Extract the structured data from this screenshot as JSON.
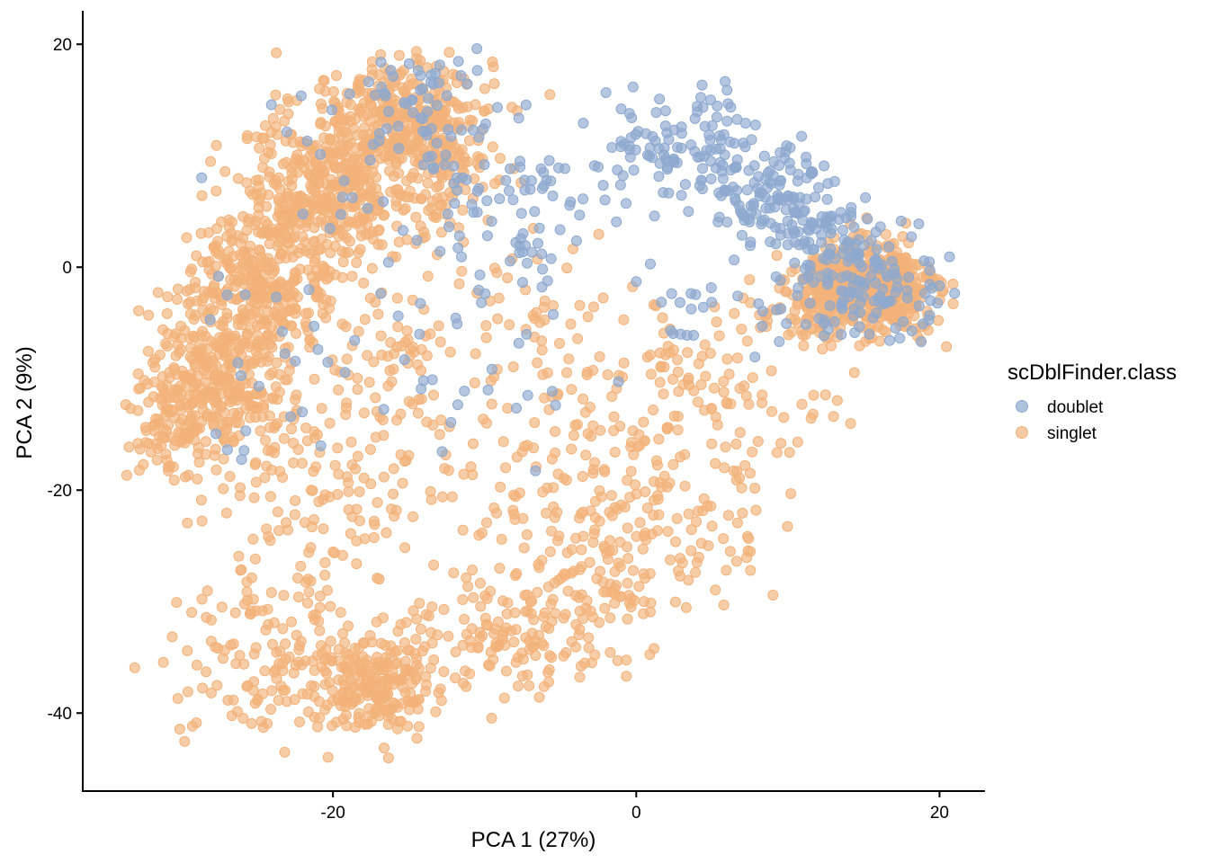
{
  "chart_data": {
    "type": "scatter",
    "title": "",
    "xlabel": "PCA 1 (27%)",
    "ylabel": "PCA 2 (9%)",
    "xlim": [
      -36.5,
      23
    ],
    "ylim": [
      -47,
      23
    ],
    "xticks": [
      -20,
      0,
      20
    ],
    "xtick_labels": [
      "-20",
      "0",
      "20"
    ],
    "yticks": [
      20,
      0,
      -20,
      -40
    ],
    "ytick_labels": [
      "20",
      "0",
      "-20",
      "-40"
    ],
    "grid": false,
    "legend": {
      "title": "scDblFinder.class",
      "position": "right",
      "entries": [
        "doublet",
        "singlet"
      ]
    },
    "series": [
      {
        "name": "doublet",
        "color": "#8ea9cf",
        "clusters": [
          {
            "center": [
              3.5,
              11
            ],
            "spread": [
              2.8,
              2.3
            ],
            "n": 110
          },
          {
            "center": [
              8.5,
              7
            ],
            "spread": [
              2.2,
              1.8
            ],
            "n": 90
          },
          {
            "center": [
              12.5,
              3
            ],
            "spread": [
              2.5,
              1.8
            ],
            "n": 95
          },
          {
            "center": [
              15,
              -1.5
            ],
            "spread": [
              3,
              2.5
            ],
            "n": 120
          },
          {
            "center": [
              -14,
              14
            ],
            "spread": [
              3,
              3.2
            ],
            "n": 70
          },
          {
            "center": [
              -9,
              7
            ],
            "spread": [
              3,
              3.2
            ],
            "n": 45
          },
          {
            "center": [
              -6,
              4
            ],
            "spread": [
              2.5,
              3.5
            ],
            "n": 35
          },
          {
            "center": [
              -10,
              -10
            ],
            "spread": [
              4,
              5
            ],
            "n": 25
          },
          {
            "center": [
              5,
              -5
            ],
            "spread": [
              2.5,
              2.5
            ],
            "n": 20
          },
          {
            "center": [
              -20,
              0
            ],
            "spread": [
              4,
              8
            ],
            "n": 25
          },
          {
            "center": [
              -26,
              -8
            ],
            "spread": [
              2.5,
              5
            ],
            "n": 15
          }
        ]
      },
      {
        "name": "singlet",
        "color": "#f3b27a",
        "clusters": [
          {
            "center": [
              -16,
              13
            ],
            "spread": [
              3.2,
              3.2
            ],
            "n": 380
          },
          {
            "center": [
              -20.5,
              6.5
            ],
            "spread": [
              2.8,
              2.8
            ],
            "n": 300
          },
          {
            "center": [
              -24.5,
              -1
            ],
            "spread": [
              2.5,
              3.2
            ],
            "n": 320
          },
          {
            "center": [
              -27.5,
              -10
            ],
            "spread": [
              2.4,
              3.6
            ],
            "n": 330
          },
          {
            "center": [
              -30.5,
              -15
            ],
            "spread": [
              1.6,
              2.6
            ],
            "n": 70
          },
          {
            "center": [
              -13,
              10
            ],
            "spread": [
              2,
              3
            ],
            "n": 110
          },
          {
            "center": [
              -17,
              -12
            ],
            "spread": [
              4.5,
              6
            ],
            "n": 110
          },
          {
            "center": [
              -22,
              -20
            ],
            "spread": [
              4,
              4.5
            ],
            "n": 90
          },
          {
            "center": [
              15.5,
              -2
            ],
            "spread": [
              2.3,
              2.3
            ],
            "n": 440
          },
          {
            "center": [
              12,
              -3
            ],
            "spread": [
              2,
              2
            ],
            "n": 100
          },
          {
            "center": [
              5,
              -12
            ],
            "spread": [
              4,
              4
            ],
            "n": 120
          },
          {
            "center": [
              -4,
              -18
            ],
            "spread": [
              4.5,
              5.5
            ],
            "n": 120
          },
          {
            "center": [
              -4,
              -28
            ],
            "spread": [
              5,
              4
            ],
            "n": 110
          },
          {
            "center": [
              -8,
              -33
            ],
            "spread": [
              3.5,
              2.5
            ],
            "n": 110
          },
          {
            "center": [
              -17,
              -37.5
            ],
            "spread": [
              2,
              2.2
            ],
            "n": 170
          },
          {
            "center": [
              -22,
              -37
            ],
            "spread": [
              4,
              3
            ],
            "n": 140
          },
          {
            "center": [
              -25,
              -31
            ],
            "spread": [
              2.5,
              2.5
            ],
            "n": 50
          },
          {
            "center": [
              2,
              -24
            ],
            "spread": [
              4,
              3
            ],
            "n": 60
          },
          {
            "center": [
              -10,
              -3
            ],
            "spread": [
              4.5,
              4
            ],
            "n": 60
          }
        ]
      }
    ]
  }
}
